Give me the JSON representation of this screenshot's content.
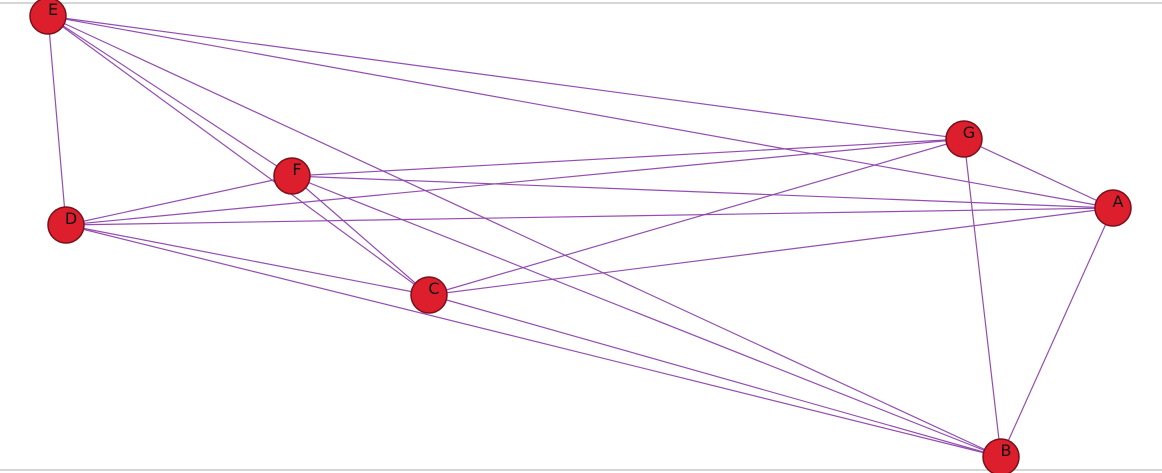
{
  "graph": {
    "node_color": "#dc1e2d",
    "edge_color": "#8e44ad",
    "nodes": [
      {
        "id": "A",
        "label": "A"
      },
      {
        "id": "B",
        "label": "B"
      },
      {
        "id": "C",
        "label": "C"
      },
      {
        "id": "D",
        "label": "D"
      },
      {
        "id": "E",
        "label": "E"
      },
      {
        "id": "F",
        "label": "F"
      },
      {
        "id": "G",
        "label": "G"
      }
    ],
    "edges": [
      [
        "E",
        "D"
      ],
      [
        "E",
        "F"
      ],
      [
        "E",
        "C"
      ],
      [
        "E",
        "B"
      ],
      [
        "E",
        "G"
      ],
      [
        "E",
        "A"
      ],
      [
        "F",
        "G"
      ],
      [
        "F",
        "A"
      ],
      [
        "F",
        "D"
      ],
      [
        "F",
        "C"
      ],
      [
        "F",
        "B"
      ],
      [
        "D",
        "G"
      ],
      [
        "D",
        "A"
      ],
      [
        "D",
        "C"
      ],
      [
        "D",
        "B"
      ],
      [
        "C",
        "G"
      ],
      [
        "C",
        "A"
      ],
      [
        "C",
        "B"
      ],
      [
        "G",
        "A"
      ],
      [
        "G",
        "B"
      ],
      [
        "A",
        "B"
      ]
    ]
  }
}
